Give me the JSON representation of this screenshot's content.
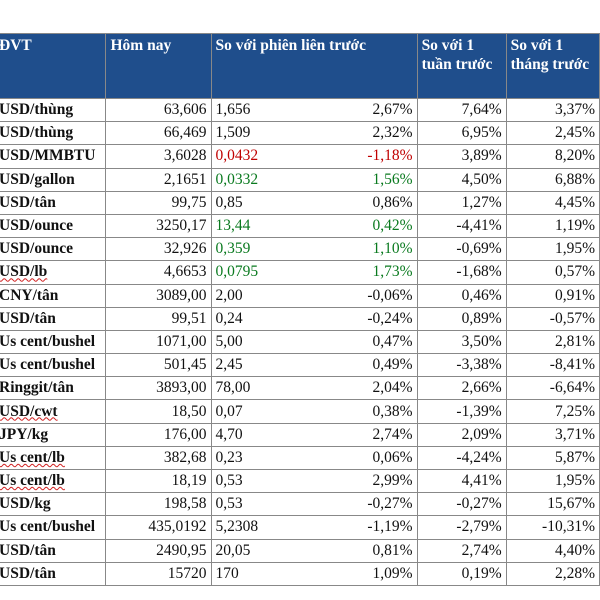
{
  "header": {
    "unit": "ĐVT",
    "today": "Hôm nay",
    "vs_prev": "So với phiên liên trước",
    "vs_week": "So với 1 tuần trước",
    "vs_month": "So với 1 tháng trước"
  },
  "rows": [
    {
      "unit": "USD/thùng",
      "today": "63,606",
      "change": "1,656",
      "change_pct": "2,67%",
      "week": "7,64%",
      "month": "3,37%"
    },
    {
      "unit": "USD/thùng",
      "today": "66,469",
      "change": "1,509",
      "change_pct": "2,32%",
      "week": "6,95%",
      "month": "2,45%"
    },
    {
      "unit": "USD/MMBTU",
      "today": "3,6028",
      "change": "0,0432",
      "change_pct": "-1,18%",
      "week": "3,89%",
      "month": "8,20%"
    },
    {
      "unit": "USD/gallon",
      "today": "2,1651",
      "change": "0,0332",
      "change_pct": "1,56%",
      "week": "4,50%",
      "month": "6,88%"
    },
    {
      "unit": "USD/tân",
      "today": "99,75",
      "change": "0,85",
      "change_pct": "0,86%",
      "week": "1,27%",
      "month": "4,45%"
    },
    {
      "unit": "USD/ounce",
      "today": "3250,17",
      "change": "13,44",
      "change_pct": "0,42%",
      "week": "-4,41%",
      "month": "1,19%"
    },
    {
      "unit": "USD/ounce",
      "today": "32,926",
      "change": "0,359",
      "change_pct": "1,10%",
      "week": "-0,69%",
      "month": "1,95%"
    },
    {
      "unit": "USD/lb",
      "today": "4,6653",
      "change": "0,0795",
      "change_pct": "1,73%",
      "week": "-1,68%",
      "month": "0,57%"
    },
    {
      "unit": "CNY/tân",
      "today": "3089,00",
      "change": "2,00",
      "change_pct": "-0,06%",
      "week": "0,46%",
      "month": "0,91%"
    },
    {
      "unit": "USD/tân",
      "today": "99,51",
      "change": "0,24",
      "change_pct": "-0,24%",
      "week": "0,89%",
      "month": "-0,57%"
    },
    {
      "unit": "Us cent/bushel",
      "today": "1071,00",
      "change": "5,00",
      "change_pct": "0,47%",
      "week": "3,50%",
      "month": "2,81%"
    },
    {
      "unit": "Us cent/bushel",
      "today": "501,45",
      "change": "2,45",
      "change_pct": "0,49%",
      "week": "-3,38%",
      "month": "-8,41%"
    },
    {
      "unit": "Ringgit/tân",
      "today": "3893,00",
      "change": "78,00",
      "change_pct": "2,04%",
      "week": "2,66%",
      "month": "-6,64%"
    },
    {
      "unit": "USD/cwt",
      "today": "18,50",
      "change": "0,07",
      "change_pct": "0,38%",
      "week": "-1,39%",
      "month": "7,25%"
    },
    {
      "unit": "JPY/kg",
      "today": "176,00",
      "change": "4,70",
      "change_pct": "2,74%",
      "week": "2,09%",
      "month": "3,71%"
    },
    {
      "unit": "Us cent/lb",
      "today": "382,68",
      "change": "0,23",
      "change_pct": "0,06%",
      "week": "-4,24%",
      "month": "5,87%"
    },
    {
      "unit": "Us cent/lb",
      "today": "18,19",
      "change": "0,53",
      "change_pct": "2,99%",
      "week": "4,41%",
      "month": "1,95%"
    },
    {
      "unit": "USD/kg",
      "today": "198,58",
      "change": "0,53",
      "change_pct": "-0,27%",
      "week": "-0,27%",
      "month": "15,67%"
    },
    {
      "unit": "Us cent/bushel",
      "today": "435,0192",
      "change": "5,2308",
      "change_pct": "-1,19%",
      "week": "-2,79%",
      "month": "-10,31%"
    },
    {
      "unit": "USD/tân",
      "today": "2490,95",
      "change": "20,05",
      "change_pct": "0,81%",
      "week": "2,74%",
      "month": "4,40%"
    },
    {
      "unit": "USD/tân",
      "today": "15720",
      "change": "170",
      "change_pct": "1,09%",
      "week": "0,19%",
      "month": "2,28%"
    }
  ],
  "change_colors": {
    "2": "neg",
    "3": "pos",
    "5": "pos",
    "6": "pos",
    "7": "pos"
  },
  "underlined_units": [
    7,
    13,
    15,
    16
  ],
  "colors": {
    "header_bg": "#1f4e8c",
    "negative": "#c00000",
    "positive": "#0a7a1f"
  }
}
